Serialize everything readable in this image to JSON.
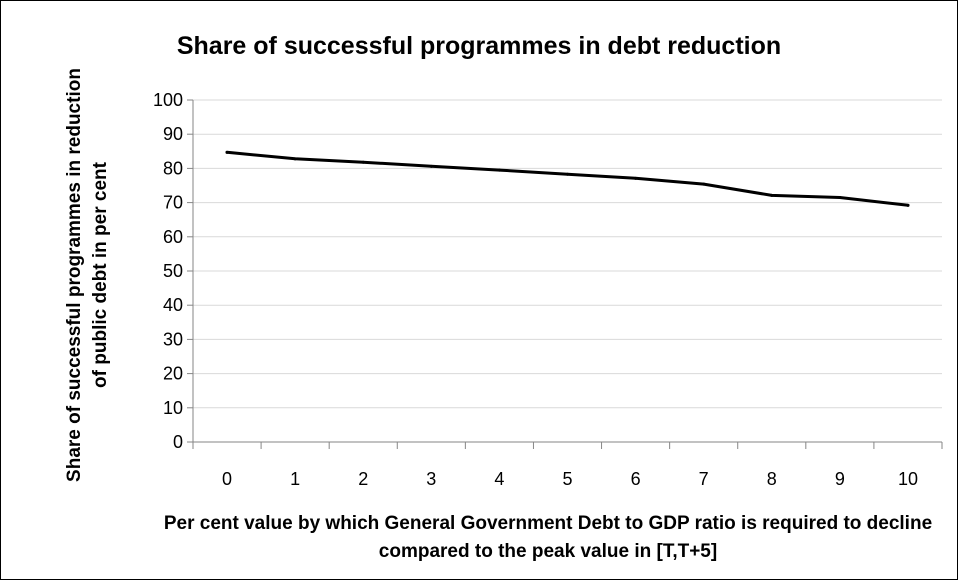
{
  "chart_data": {
    "type": "line",
    "title": "Share of successful programmes in debt reduction",
    "ylabel": "Share of successful programmes in reduction of public debt in per cent",
    "xlabel": "Per cent value by which General Government Debt to GDP ratio is required to decline compared to the peak value in [T,T+5]",
    "categories": [
      "0",
      "1",
      "2",
      "3",
      "4",
      "5",
      "6",
      "7",
      "8",
      "9",
      "10"
    ],
    "y_ticks": [
      "0",
      "10",
      "20",
      "30",
      "40",
      "50",
      "60",
      "70",
      "80",
      "90",
      "100"
    ],
    "ylim": [
      0,
      100
    ],
    "grid": true,
    "series": [
      {
        "values": [
          84.7,
          82.8,
          81.8,
          80.6,
          79.5,
          78.3,
          77.1,
          75.4,
          72.1,
          71.5,
          69.2
        ]
      }
    ],
    "colors": {
      "line": "#000000",
      "grid": "#d9d9d9",
      "axis": "#868686"
    }
  }
}
